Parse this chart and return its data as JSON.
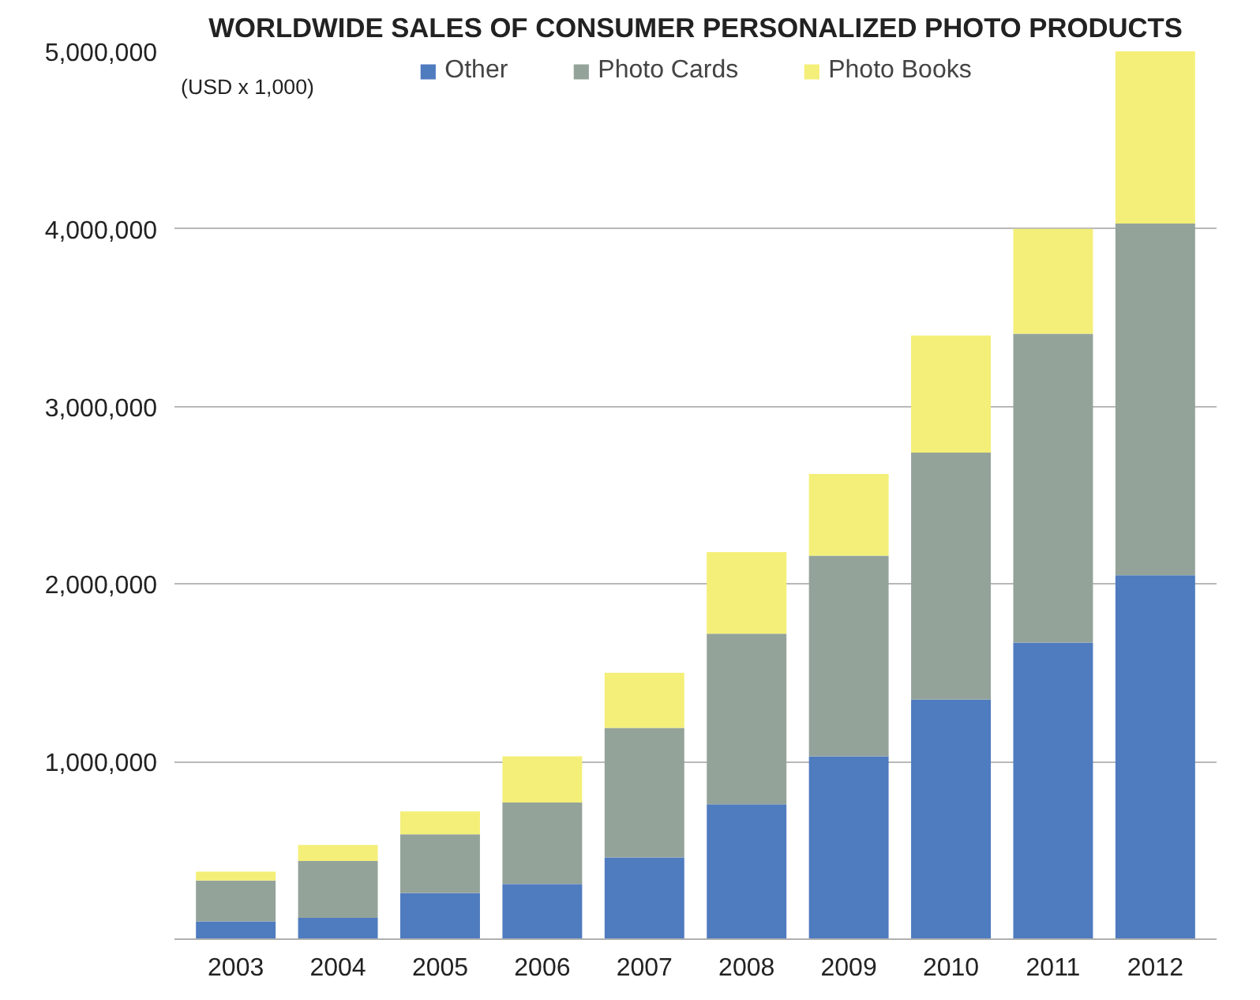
{
  "chart_data": {
    "type": "bar",
    "title": "WORLDWIDE SALES OF CONSUMER PERSONALIZED PHOTO PRODUCTS",
    "ylabel": "(USD x 1,000)",
    "categories": [
      "2003",
      "2004",
      "2005",
      "2006",
      "2007",
      "2008",
      "2009",
      "2010",
      "2011",
      "2012"
    ],
    "stacked": true,
    "series": [
      {
        "name": "Other",
        "color": "#4f7bbf",
        "values": [
          100000,
          120000,
          260000,
          310000,
          460000,
          760000,
          1030000,
          1350000,
          1670000,
          2050000
        ]
      },
      {
        "name": "Photo Cards",
        "color": "#94a39a",
        "values": [
          230000,
          320000,
          330000,
          460000,
          730000,
          960000,
          1130000,
          1390000,
          1740000,
          1980000
        ]
      },
      {
        "name": "Photo Books",
        "color": "#f4ef78",
        "values": [
          50000,
          90000,
          130000,
          260000,
          310000,
          460000,
          460000,
          660000,
          590000,
          970000
        ]
      }
    ],
    "ylim": [
      0,
      5000000
    ],
    "yticks": [
      {
        "value": 1000000,
        "label": "1,000,000"
      },
      {
        "value": 2000000,
        "label": "2,000,000"
      },
      {
        "value": 3000000,
        "label": "3,000,000"
      },
      {
        "value": 4000000,
        "label": "4,000,000"
      },
      {
        "value": 5000000,
        "label": "5,000,000"
      }
    ],
    "grid": "y",
    "legend": "top"
  }
}
